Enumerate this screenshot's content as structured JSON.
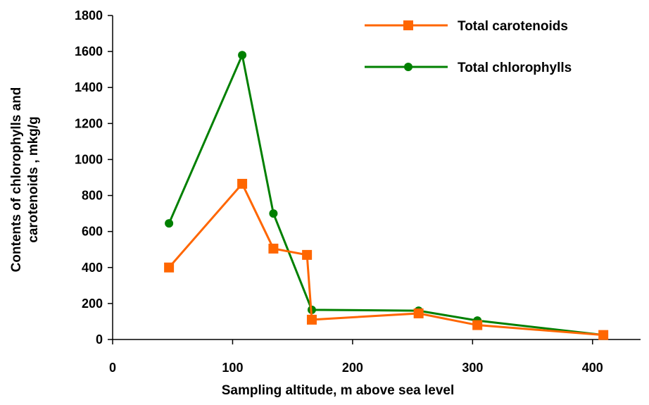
{
  "chart_data": {
    "type": "line",
    "xlabel": "Sampling altitude, m above sea level",
    "ylabel_lines": [
      "Contents of chlorophylls and",
      "carotenoids , mkg/g"
    ],
    "xlim": [
      0,
      440
    ],
    "ylim": [
      0,
      1800
    ],
    "xticks": [
      0,
      100,
      200,
      300,
      400
    ],
    "yticks": [
      0,
      200,
      400,
      600,
      800,
      1000,
      1200,
      1400,
      1600,
      1800
    ],
    "grid": false,
    "legend_position": "top-right",
    "series": [
      {
        "name": "Total carotenoids",
        "color": "#ff6600",
        "marker": "square",
        "x": [
          47,
          108,
          134,
          162,
          166,
          255,
          304,
          409
        ],
        "y": [
          400,
          865,
          505,
          470,
          110,
          145,
          80,
          25
        ]
      },
      {
        "name": "Total chlorophylls",
        "color": "#008000",
        "marker": "circle",
        "x": [
          47,
          108,
          134,
          166,
          255,
          304,
          409
        ],
        "y": [
          645,
          1580,
          700,
          165,
          160,
          105,
          25
        ]
      }
    ]
  }
}
